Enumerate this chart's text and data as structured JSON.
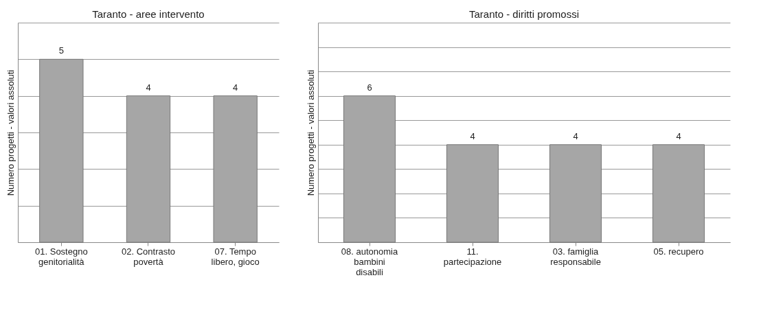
{
  "chart_data": [
    {
      "type": "bar",
      "title": "Taranto - aree intervento",
      "ylabel": "Numero progetti - valori assoluti",
      "categories": [
        "01. Sostegno genitorialità",
        "02. Contrasto povertà",
        "07. Tempo libero, gioco"
      ],
      "values": [
        5,
        4,
        4
      ],
      "color": "#a6a6a6",
      "data_labels": true,
      "ylim": [
        0,
        6
      ],
      "yticks": [
        0,
        1,
        2,
        3,
        4,
        5,
        6
      ],
      "grid": "y",
      "tick_labels": "x"
    },
    {
      "type": "bar",
      "title": "Taranto - diritti promossi",
      "ylabel": "Numero progetti - valori assoluti",
      "categories": [
        "08. autonomia bambini disabili",
        "11. partecipazione",
        "03. famiglia responsabile",
        "05. recupero"
      ],
      "values": [
        6,
        4,
        4,
        4
      ],
      "color": "#a6a6a6",
      "data_labels": true,
      "ylim": [
        0,
        9
      ],
      "yticks": [
        0,
        1,
        2,
        3,
        4,
        5,
        6,
        7,
        8,
        9
      ],
      "grid": "y",
      "tick_labels": "x"
    }
  ]
}
